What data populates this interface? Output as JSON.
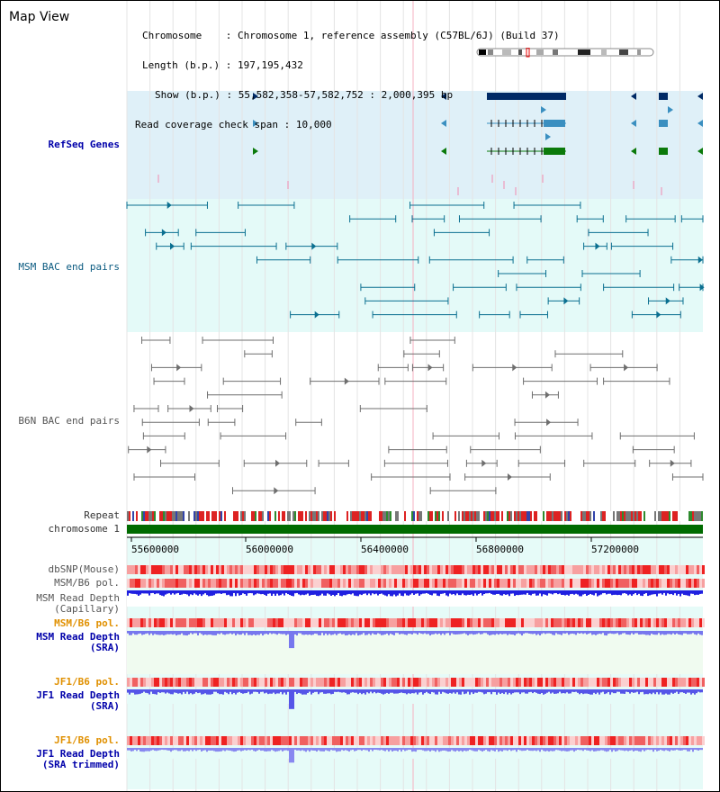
{
  "title": "Map View",
  "info": {
    "chromosome_label": "Chromosome",
    "chromosome_value": "Chromosome 1, reference assembly (C57BL/6J) (Build 37)",
    "length_label": "Length (b.p.)",
    "length_value": "197,195,432",
    "show_label": "Show (b.p.)",
    "show_value": "55,582,358-57,582,752 : 2,000,395 bp",
    "coverage_label": "Read coverage check span",
    "coverage_value": "10,000"
  },
  "tracks": {
    "refseq": "RefSeq Genes",
    "msm_bac": "MSM BAC end pairs",
    "b6n_bac": "B6N BAC end pairs",
    "repeat": "Repeat",
    "chromosome": "chromosome 1",
    "dbsnp": "dbSNP(Mouse)",
    "msm_b6_pol_1": "MSM/B6 pol.",
    "msm_read_depth_cap_1": "MSM Read Depth",
    "msm_read_depth_cap_2": "(Capillary)",
    "msm_b6_pol_2": "MSM/B6 pol.",
    "msm_read_depth_sra_1": "MSM Read Depth",
    "msm_read_depth_sra_2": "(SRA)",
    "jf1_b6_pol_1": "JF1/B6 pol.",
    "jf1_read_depth_1": "JF1 Read Depth",
    "jf1_read_depth_2": "(SRA)",
    "jf1_b6_pol_2": "JF1/B6 pol.",
    "jf1_read_depth_trim_1": "JF1 Read Depth",
    "jf1_read_depth_trim_2": "(SRA trimmed)"
  },
  "axis_ticks": [
    "55600000",
    "56000000",
    "56400000",
    "56800000",
    "57200000"
  ],
  "colors": {
    "refseq_bg": "#dff0f8",
    "msm_bg": "#e4faf8",
    "b6n_bg": "#ffffff",
    "axis_bg": "#e6fbf8",
    "gene_dark": "#002a66",
    "gene_mid": "#3a8fc0",
    "gene_green": "#0b7a0b",
    "msm_line": "#0a6f90",
    "b6n_line": "#6e6e6e",
    "chromosome_bar": "#006b00",
    "depth_blue": "#2020e0",
    "depth_light": "#7777ee",
    "pol_red": "#ee3333"
  }
}
